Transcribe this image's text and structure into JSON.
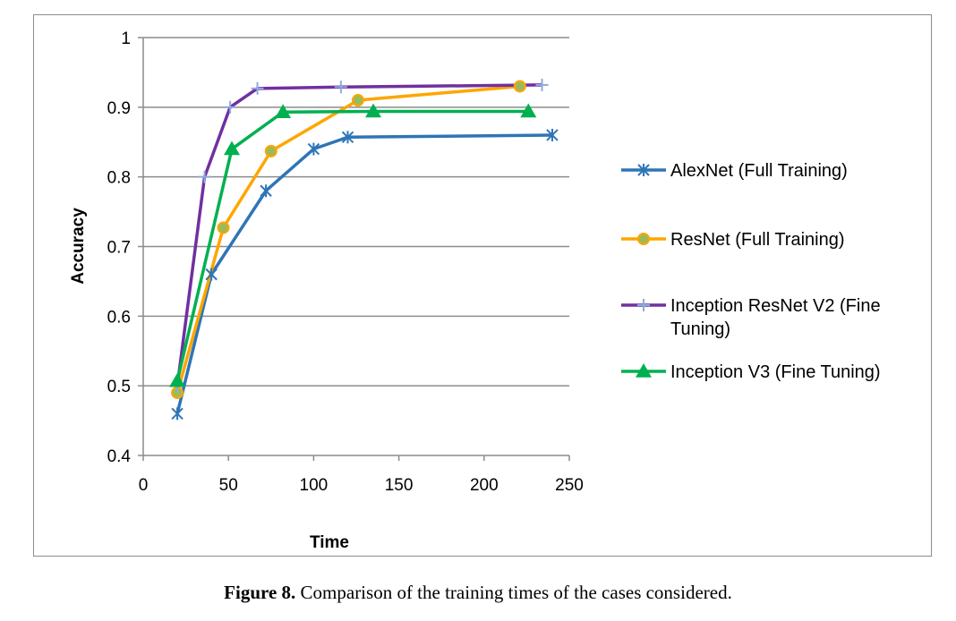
{
  "chart_data": {
    "type": "line",
    "title": "",
    "xlabel": "Time",
    "ylabel": "Accuracy",
    "xlim": [
      0,
      250
    ],
    "ylim": [
      0.4,
      1
    ],
    "xticks": [
      0,
      50,
      100,
      150,
      200,
      250
    ],
    "yticks": [
      0.4,
      0.5,
      0.6,
      0.7,
      0.8,
      0.9,
      1
    ],
    "xtick_labels": [
      "0",
      "50",
      "100",
      "150",
      "200",
      "250"
    ],
    "ytick_labels": [
      "0.4",
      "0.5",
      "0.6",
      "0.7",
      "0.8",
      "0.9",
      "1"
    ],
    "grid": "horizontal",
    "legend_position": "right",
    "series": [
      {
        "name": "AlexNet (Full Training)",
        "color": "#2e75b6",
        "marker": "star",
        "x": [
          20,
          40,
          72,
          100,
          120,
          240
        ],
        "y": [
          0.46,
          0.66,
          0.78,
          0.84,
          0.857,
          0.86
        ]
      },
      {
        "name": "ResNet (Full Training)",
        "color": "#ffa500",
        "marker": "circle",
        "x": [
          20,
          47,
          75,
          126,
          221
        ],
        "y": [
          0.49,
          0.727,
          0.837,
          0.91,
          0.93
        ]
      },
      {
        "name": "Inception ResNet V2 (Fine Tuning)",
        "color": "#7030a0",
        "marker": "plus",
        "x": [
          20,
          36,
          51,
          67,
          116,
          234
        ],
        "y": [
          0.5,
          0.8,
          0.9,
          0.927,
          0.929,
          0.932
        ]
      },
      {
        "name": "Inception V3 (Fine Tuning)",
        "color": "#00b050",
        "marker": "triangle",
        "x": [
          20,
          52,
          82,
          135,
          226
        ],
        "y": [
          0.507,
          0.84,
          0.893,
          0.894,
          0.894
        ]
      }
    ]
  },
  "caption": {
    "label": "Figure 8.",
    "text": " Comparison of the training times of the cases considered."
  }
}
